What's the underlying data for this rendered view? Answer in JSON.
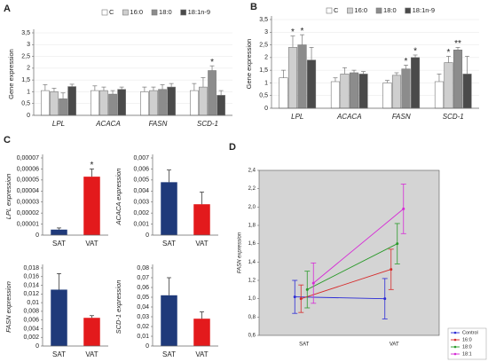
{
  "chart_data": [
    {
      "type": "bar",
      "panel": "A",
      "ylabel": "Gene expression",
      "categories": [
        "LPL",
        "ACACA",
        "FASN",
        "SCD-1"
      ],
      "series": [
        {
          "name": "C",
          "color": "#ffffff",
          "values": [
            1.05,
            1.05,
            1.0,
            1.05
          ],
          "errors": [
            0.25,
            0.2,
            0.2,
            0.3
          ],
          "stars": [
            null,
            null,
            null,
            null
          ]
        },
        {
          "name": "16:0",
          "color": "#cfcfcf",
          "values": [
            1.0,
            1.05,
            1.05,
            1.2
          ],
          "errors": [
            0.15,
            0.15,
            0.15,
            0.4
          ],
          "stars": [
            null,
            null,
            null,
            null
          ]
        },
        {
          "name": "18:0",
          "color": "#8c8c8c",
          "values": [
            0.7,
            0.9,
            1.1,
            1.9
          ],
          "errors": [
            0.25,
            0.15,
            0.2,
            0.2
          ],
          "stars": [
            null,
            null,
            null,
            "*"
          ]
        },
        {
          "name": "18:1n-9",
          "color": "#4a4a4a",
          "values": [
            1.22,
            1.1,
            1.2,
            0.85
          ],
          "errors": [
            0.1,
            0.1,
            0.15,
            0.2
          ],
          "stars": [
            null,
            null,
            null,
            null
          ]
        }
      ],
      "ylim": [
        0,
        3.5
      ],
      "yticks": [
        0,
        {
          "value": 0.5,
          "label": "0,5"
        },
        1,
        {
          "value": 1.5,
          "label": "1,5"
        },
        2,
        {
          "value": 2.5,
          "label": "2,5"
        },
        3,
        {
          "value": 3.5,
          "label": "3,5"
        }
      ]
    },
    {
      "type": "bar",
      "panel": "B",
      "ylabel": "Gene expression",
      "categories": [
        "LPL",
        "ACACA",
        "FASN",
        "SCD-1"
      ],
      "series": [
        {
          "name": "C",
          "color": "#ffffff",
          "values": [
            1.2,
            1.05,
            1.0,
            1.05
          ],
          "errors": [
            0.3,
            0.15,
            0.1,
            0.3
          ],
          "stars": [
            null,
            null,
            null,
            null
          ]
        },
        {
          "name": "16:0",
          "color": "#cfcfcf",
          "values": [
            2.4,
            1.35,
            1.3,
            1.8
          ],
          "errors": [
            0.45,
            0.25,
            0.1,
            0.25
          ],
          "stars": [
            "*",
            null,
            null,
            "*"
          ]
        },
        {
          "name": "18:0",
          "color": "#8c8c8c",
          "values": [
            2.5,
            1.4,
            1.55,
            2.3
          ],
          "errors": [
            0.4,
            0.1,
            0.15,
            0.1
          ],
          "stars": [
            "*",
            null,
            "*",
            "**"
          ]
        },
        {
          "name": "18:1n-9",
          "color": "#4a4a4a",
          "values": [
            1.9,
            1.35,
            2.0,
            1.35
          ],
          "errors": [
            0.5,
            0.1,
            0.1,
            0.7
          ],
          "stars": [
            null,
            null,
            "*",
            null
          ]
        }
      ],
      "ylim": [
        0,
        3.5
      ],
      "yticks": [
        0,
        {
          "value": 0.5,
          "label": "0,5"
        },
        1,
        {
          "value": 1.5,
          "label": "1,5"
        },
        2,
        {
          "value": 2.5,
          "label": "2,5"
        },
        3,
        {
          "value": 3.5,
          "label": "3,5"
        }
      ]
    },
    {
      "type": "bar",
      "panel": "C",
      "ylabel": "LPL expression",
      "categories": [
        "SAT",
        "VAT"
      ],
      "colors": [
        "#1f3a7a",
        "#e31a1c"
      ],
      "values": [
        5e-06,
        5.3e-05
      ],
      "errors": [
        1.5e-06,
        7e-06
      ],
      "stars": [
        null,
        "*"
      ],
      "ylim": [
        0,
        7e-05
      ],
      "yticks": [
        0,
        {
          "value": 1e-05,
          "label": "0,00001"
        },
        {
          "value": 2e-05,
          "label": "0,00002"
        },
        {
          "value": 3e-05,
          "label": "0,00003"
        },
        {
          "value": 4e-05,
          "label": "0,00004"
        },
        {
          "value": 5e-05,
          "label": "0,00005"
        },
        {
          "value": 6e-05,
          "label": "0,00006"
        },
        {
          "value": 7e-05,
          "label": "0,00007"
        }
      ]
    },
    {
      "type": "bar",
      "ylabel": "ACACA expression",
      "categories": [
        "SAT",
        "VAT"
      ],
      "colors": [
        "#1f3a7a",
        "#e31a1c"
      ],
      "values": [
        0.0048,
        0.0028
      ],
      "errors": [
        0.0011,
        0.0011
      ],
      "stars": [
        null,
        null
      ],
      "ylim": [
        0,
        0.007
      ],
      "yticks": [
        0,
        {
          "value": 0.001,
          "label": "0,001"
        },
        {
          "value": 0.002,
          "label": "0,002"
        },
        {
          "value": 0.003,
          "label": "0,003"
        },
        {
          "value": 0.004,
          "label": "0,004"
        },
        {
          "value": 0.005,
          "label": "0,005"
        },
        {
          "value": 0.006,
          "label": "0,006"
        },
        {
          "value": 0.007,
          "label": "0,007"
        }
      ]
    },
    {
      "type": "bar",
      "ylabel": "FASN expression",
      "categories": [
        "SAT",
        "VAT"
      ],
      "colors": [
        "#1f3a7a",
        "#e31a1c"
      ],
      "values": [
        0.013,
        0.0065
      ],
      "errors": [
        0.0037,
        0.0005
      ],
      "stars": [
        null,
        null
      ],
      "ylim": [
        0,
        0.018
      ],
      "yticks": [
        0,
        {
          "value": 0.002,
          "label": "0,002"
        },
        {
          "value": 0.004,
          "label": "0,004"
        },
        {
          "value": 0.006,
          "label": "0,006"
        },
        {
          "value": 0.008,
          "label": "0,008"
        },
        {
          "value": 0.01,
          "label": "0,01"
        },
        {
          "value": 0.012,
          "label": "0,012"
        },
        {
          "value": 0.014,
          "label": "0,014"
        },
        {
          "value": 0.016,
          "label": "0,016"
        },
        {
          "value": 0.018,
          "label": "0,018"
        }
      ]
    },
    {
      "type": "bar",
      "ylabel": "SCD-1 expression",
      "categories": [
        "SAT",
        "VAT"
      ],
      "colors": [
        "#1f3a7a",
        "#e31a1c"
      ],
      "values": [
        0.052,
        0.028
      ],
      "errors": [
        0.018,
        0.007
      ],
      "stars": [
        null,
        null
      ],
      "ylim": [
        0,
        0.08
      ],
      "yticks": [
        0,
        {
          "value": 0.01,
          "label": "0,01"
        },
        {
          "value": 0.02,
          "label": "0,02"
        },
        {
          "value": 0.03,
          "label": "0,03"
        },
        {
          "value": 0.04,
          "label": "0,04"
        },
        {
          "value": 0.05,
          "label": "0,05"
        },
        {
          "value": 0.06,
          "label": "0,06"
        },
        {
          "value": 0.07,
          "label": "0,07"
        },
        {
          "value": 0.08,
          "label": "0,08"
        }
      ]
    },
    {
      "type": "line",
      "panel": "D",
      "ylabel": "FASN expression",
      "categories": [
        "SAT",
        "VAT"
      ],
      "series": [
        {
          "name": "Control",
          "color": "#2a2ad6",
          "values": [
            1.02,
            1.0
          ],
          "errors": [
            0.18,
            0.22
          ]
        },
        {
          "name": "16:0",
          "color": "#d62a2a",
          "values": [
            1.0,
            1.32
          ],
          "errors": [
            0.15,
            0.22
          ]
        },
        {
          "name": "18:0",
          "color": "#2a9a2a",
          "values": [
            1.1,
            1.6
          ],
          "errors": [
            0.2,
            0.22
          ]
        },
        {
          "name": "18:1",
          "color": "#d62ad6",
          "values": [
            1.17,
            1.98
          ],
          "errors": [
            0.22,
            0.27
          ]
        }
      ],
      "ylim": [
        0.6,
        2.4
      ],
      "yticks": [
        {
          "value": 0.6,
          "label": "0,6"
        },
        {
          "value": 0.8,
          "label": "0,8"
        },
        {
          "value": 1.0,
          "label": "1,0"
        },
        {
          "value": 1.2,
          "label": "1,2"
        },
        {
          "value": 1.4,
          "label": "1,4"
        },
        {
          "value": 1.6,
          "label": "1,6"
        },
        {
          "value": 1.8,
          "label": "1,8"
        },
        {
          "value": 2.0,
          "label": "2,0"
        },
        {
          "value": 2.2,
          "label": "2,2"
        },
        {
          "value": 2.4,
          "label": "2,4"
        }
      ]
    }
  ]
}
